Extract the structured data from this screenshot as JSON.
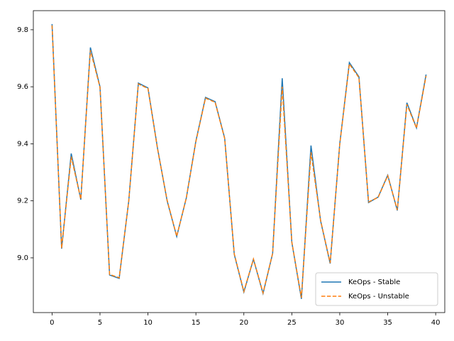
{
  "chart_data": {
    "type": "line",
    "x": [
      0,
      1,
      2,
      3,
      4,
      5,
      6,
      7,
      8,
      9,
      10,
      11,
      12,
      13,
      14,
      15,
      16,
      17,
      18,
      19,
      20,
      21,
      22,
      23,
      24,
      25,
      26,
      27,
      28,
      29,
      30,
      31,
      32,
      33,
      34,
      35,
      36,
      37,
      38,
      39
    ],
    "series": [
      {
        "name": "KeOps - Stable",
        "color": "#1f77b4",
        "dash": false,
        "values": [
          9.82,
          9.032,
          9.366,
          9.204,
          9.738,
          9.6,
          8.94,
          8.928,
          9.2,
          9.613,
          9.596,
          9.384,
          9.2,
          9.075,
          9.21,
          9.41,
          9.563,
          9.548,
          9.42,
          9.012,
          8.88,
          8.995,
          8.875,
          9.015,
          9.63,
          9.055,
          8.856,
          9.394,
          9.13,
          8.98,
          9.4,
          9.685,
          9.635,
          9.194,
          9.213,
          9.29,
          9.166,
          9.544,
          9.456,
          9.643
        ]
      },
      {
        "name": "KeOps - Unstable",
        "color": "#ff7f0e",
        "dash": true,
        "values": [
          9.815,
          9.034,
          9.355,
          9.206,
          9.728,
          9.598,
          8.942,
          8.93,
          9.2,
          9.61,
          9.594,
          9.382,
          9.202,
          9.076,
          9.21,
          9.408,
          9.56,
          9.546,
          9.418,
          9.014,
          8.882,
          8.996,
          8.877,
          9.016,
          9.6,
          9.056,
          8.86,
          9.37,
          9.132,
          8.982,
          9.398,
          9.68,
          9.632,
          9.196,
          9.212,
          9.288,
          9.168,
          9.538,
          9.455,
          9.638
        ]
      }
    ],
    "xlim": [
      -1.95,
      40.95
    ],
    "xticks": [
      0,
      5,
      10,
      15,
      20,
      25,
      30,
      35,
      40
    ],
    "ylim": [
      8.808,
      9.867
    ],
    "yticks": [
      {
        "value": 9.0,
        "label": "9.0"
      },
      9.2,
      9.4,
      9.6,
      9.8
    ],
    "legend": "lower right"
  }
}
